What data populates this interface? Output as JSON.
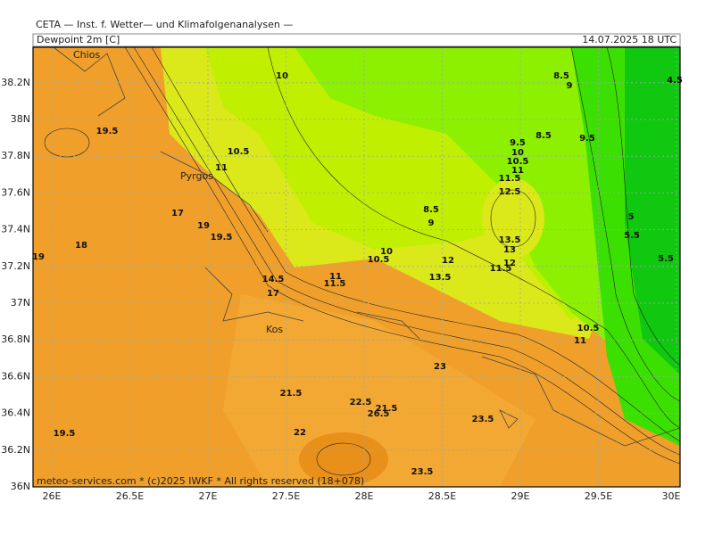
{
  "header": {
    "title": "CETA — Inst. f. Wetter— und Klimafolgenanalysen —",
    "variable": "Dewpoint 2m [C]",
    "datetime": "14.07.2025 18 UTC"
  },
  "map": {
    "lon_labels": [
      "26E",
      "26.5E",
      "27E",
      "27.5E",
      "28E",
      "28.5E",
      "29E",
      "29.5E",
      "30E"
    ],
    "lat_labels": [
      "36N",
      "36.2N",
      "36.4N",
      "36.6N",
      "36.8N",
      "37N",
      "37.2N",
      "37.4N",
      "37.6N",
      "37.8N",
      "38N",
      "38.2N"
    ],
    "place_labels": [
      "Chios",
      "Pyrgos",
      "Kos"
    ],
    "contour_labels": [
      10,
      19.5,
      10.5,
      11,
      17,
      19,
      18,
      19.5,
      19,
      8.5,
      9,
      8.5,
      9.5,
      9.5,
      10,
      10.5,
      11,
      11.5,
      12.5,
      8.5,
      9,
      5,
      5.5,
      5.5,
      4.5,
      13.5,
      13,
      12,
      11.5,
      10,
      10.5,
      11,
      11.5,
      12,
      13.5,
      14.5,
      17,
      10.5,
      11,
      22.5,
      21.5,
      22,
      23.5,
      23.5,
      19.5,
      21.5,
      23,
      26.5
    ]
  },
  "footer": {
    "copyright": "meteo-services.com * (c)2025 IWKF * All rights reserved (18+078)"
  }
}
